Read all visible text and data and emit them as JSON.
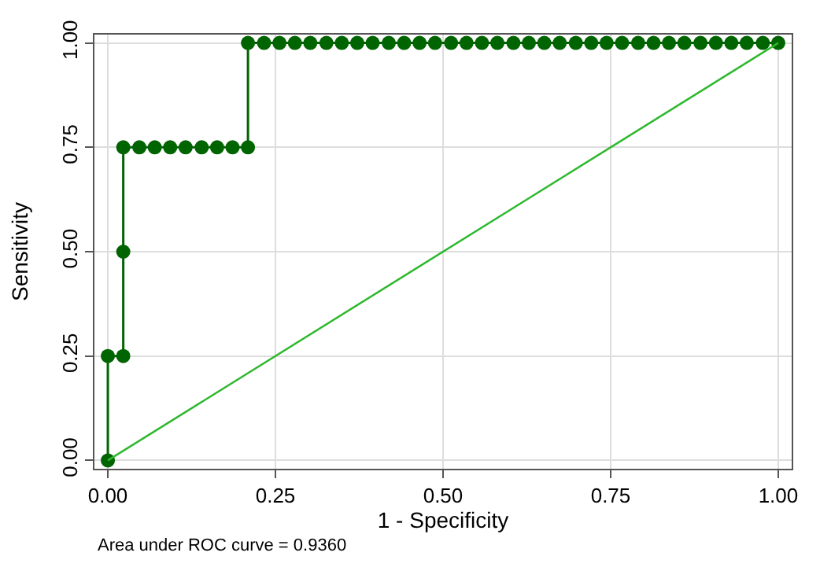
{
  "chart_data": {
    "type": "line",
    "xlabel": "1 - Specificity",
    "ylabel": "Sensitivity",
    "annotations": [
      "Area under ROC curve = 0.9360"
    ],
    "xlim": [
      0,
      1
    ],
    "ylim": [
      0,
      1
    ],
    "xticks": [
      {
        "value": 0,
        "label": "0.00"
      },
      {
        "value": 0.25,
        "label": "0.25"
      },
      {
        "value": 0.5,
        "label": "0.50"
      },
      {
        "value": 0.75,
        "label": "0.75"
      },
      {
        "value": 1,
        "label": "1.00"
      }
    ],
    "yticks": [
      {
        "value": 0,
        "label": "0.00"
      },
      {
        "value": 0.25,
        "label": "0.25"
      },
      {
        "value": 0.5,
        "label": "0.50"
      },
      {
        "value": 0.75,
        "label": "0.75"
      },
      {
        "value": 1,
        "label": "1.00"
      }
    ],
    "grid": true,
    "series": [
      {
        "color": "#006400",
        "marker": "circle",
        "x": [
          0,
          0,
          0.023,
          0.023,
          0.023,
          0.047,
          0.07,
          0.093,
          0.116,
          0.14,
          0.163,
          0.186,
          0.209,
          0.209,
          0.233,
          0.256,
          0.279,
          0.302,
          0.326,
          0.349,
          0.372,
          0.395,
          0.419,
          0.442,
          0.465,
          0.488,
          0.512,
          0.535,
          0.558,
          0.581,
          0.605,
          0.628,
          0.651,
          0.674,
          0.698,
          0.721,
          0.744,
          0.767,
          0.791,
          0.814,
          0.837,
          0.86,
          0.884,
          0.907,
          0.93,
          0.953,
          0.977,
          1.0
        ],
        "values": [
          0,
          0.25,
          0.25,
          0.5,
          0.75,
          0.75,
          0.75,
          0.75,
          0.75,
          0.75,
          0.75,
          0.75,
          0.75,
          1,
          1,
          1,
          1,
          1,
          1,
          1,
          1,
          1,
          1,
          1,
          1,
          1,
          1,
          1,
          1,
          1,
          1,
          1,
          1,
          1,
          1,
          1,
          1,
          1,
          1,
          1,
          1,
          1,
          1,
          1,
          1,
          1,
          1,
          1
        ]
      },
      {
        "color": "#2eb82e",
        "marker": "none",
        "x": [
          0,
          1
        ],
        "values": [
          0,
          1
        ]
      }
    ]
  }
}
